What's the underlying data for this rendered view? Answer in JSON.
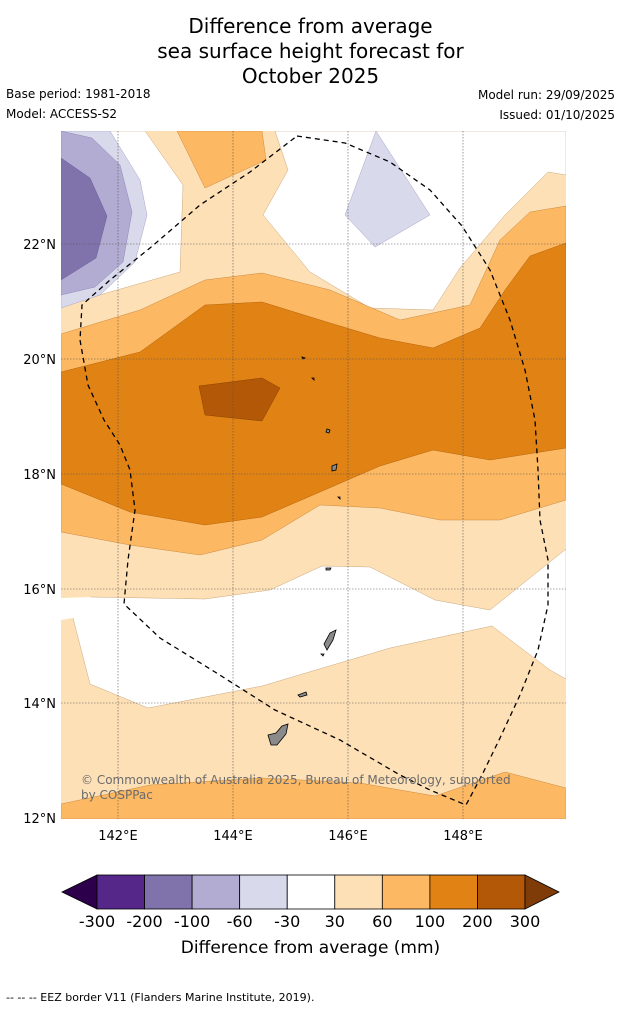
{
  "title": {
    "line1": "Difference from average",
    "line2": "sea surface height forecast for",
    "line3": "October 2025"
  },
  "meta": {
    "base_period": "Base period: 1981-2018",
    "model": "Model: ACCESS-S2",
    "model_run": "Model run: 29/09/2025",
    "issued": "Issued: 01/10/2025"
  },
  "map": {
    "extent": {
      "lon": [
        141.0,
        149.8
      ],
      "lat": [
        12.0,
        24.0
      ]
    },
    "lon_ticks": [
      "142°E",
      "144°E",
      "146°E",
      "148°E"
    ],
    "lat_ticks": [
      "22°N",
      "20°N",
      "18°N",
      "16°N",
      "14°N",
      "12°N"
    ],
    "copyright": "© Commonwealth of Australia 2025, Bureau of Meteorology, supported",
    "copyright2": "by COSPPac",
    "eez_line_style": "dashed"
  },
  "colorbar": {
    "labels": [
      "-300",
      "-200",
      "-100",
      "-60",
      "-30",
      "30",
      "60",
      "100",
      "200",
      "300"
    ],
    "colors": [
      "#2d004b",
      "#542788",
      "#8073ac",
      "#b2abd2",
      "#d8daeb",
      "#ffffff",
      "#fee0b6",
      "#fdb863",
      "#e08214",
      "#b35806",
      "#7f3b08"
    ],
    "title": "Difference from average (mm)"
  },
  "footer": "--  --  -- EEZ border V11 (Flanders Marine Institute, 2019)."
}
